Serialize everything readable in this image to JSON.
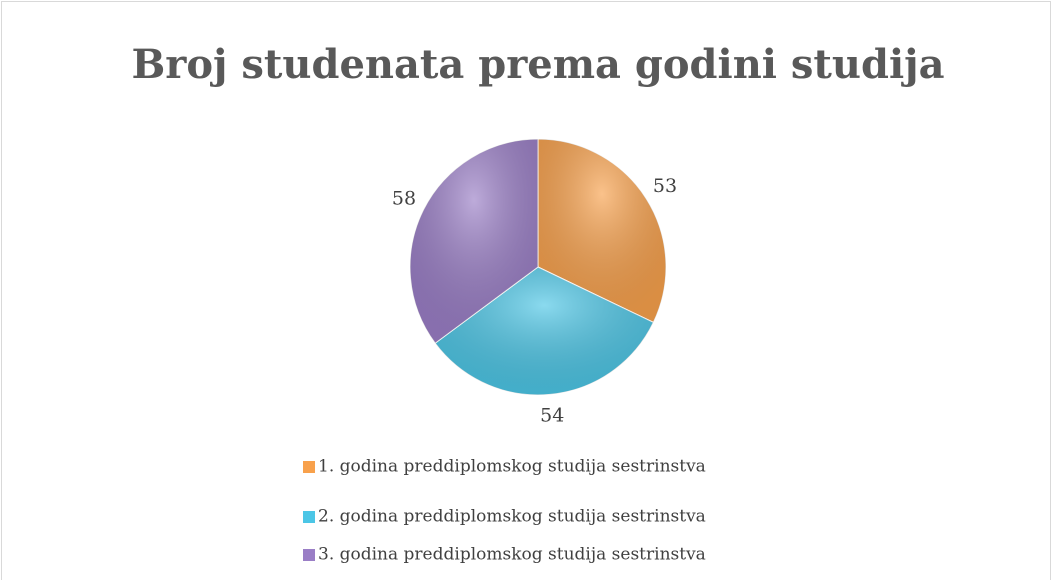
{
  "chart_data": {
    "type": "pie",
    "title": "Broj studenata prema godini studija",
    "categories": [
      "1. godina preddiplomskog studija sestrinstva",
      "2. godina preddiplomskog studija sestrinstva",
      "3. godina preddiplomskog studija sestrinstva"
    ],
    "values": [
      53,
      54,
      58
    ],
    "colors": [
      "#f8a14c",
      "#4cc6e6",
      "#9a7ec6"
    ],
    "legend": "bottom"
  }
}
